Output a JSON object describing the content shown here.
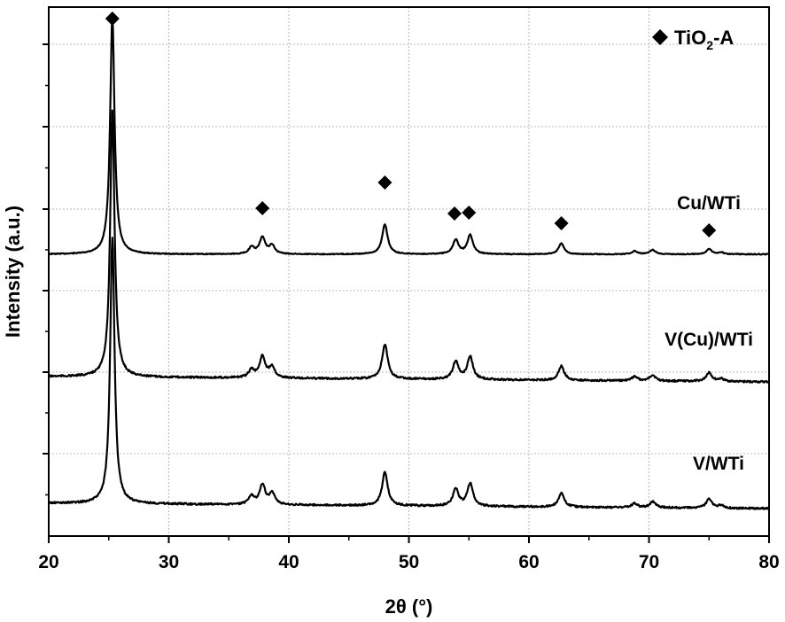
{
  "chart_data": {
    "type": "line",
    "xlabel": "2θ (°)",
    "ylabel": "Intensity (a.u.)",
    "xlim": [
      20,
      80
    ],
    "xticks": [
      "20",
      "30",
      "40",
      "50",
      "60",
      "70",
      "80"
    ],
    "grid": true,
    "y_tick_labels_shown": false,
    "legend": {
      "marker": "diamond",
      "text_main": "TiO",
      "text_sub": "2",
      "text_tail": "-A",
      "placement": "top-right"
    },
    "series": [
      {
        "name": "Cu/WTi",
        "baseline": [
          0.0,
          0.0
        ],
        "peaks": [
          [
            25.3,
            100
          ],
          [
            36.9,
            2.8
          ],
          [
            37.8,
            7.0
          ],
          [
            38.6,
            3.5
          ],
          [
            48.0,
            12.5
          ],
          [
            53.9,
            6.0
          ],
          [
            55.1,
            8.0
          ],
          [
            62.7,
            4.5
          ],
          [
            68.8,
            1.3
          ],
          [
            70.3,
            1.8
          ],
          [
            75.0,
            2.2
          ],
          [
            76.0,
            0.8
          ]
        ]
      },
      {
        "name": "V(Cu)/WTi",
        "baseline": [
          2.0,
          0.0
        ],
        "peaks": [
          [
            25.3,
            100
          ],
          [
            36.9,
            3.0
          ],
          [
            37.8,
            8.0
          ],
          [
            38.6,
            4.2
          ],
          [
            48.0,
            13.0
          ],
          [
            53.9,
            6.8
          ],
          [
            55.1,
            8.7
          ],
          [
            62.7,
            5.4
          ],
          [
            68.8,
            1.6
          ],
          [
            70.3,
            2.3
          ],
          [
            75.0,
            3.4
          ],
          [
            76.0,
            1.0
          ]
        ]
      },
      {
        "name": "V/WTi",
        "baseline": [
          2.0,
          0.0
        ],
        "peaks": [
          [
            25.3,
            100
          ],
          [
            36.9,
            3.0
          ],
          [
            37.8,
            7.5
          ],
          [
            38.6,
            4.2
          ],
          [
            48.0,
            12.5
          ],
          [
            53.9,
            6.5
          ],
          [
            55.1,
            8.5
          ],
          [
            62.7,
            5.3
          ],
          [
            68.8,
            1.6
          ],
          [
            70.3,
            2.3
          ],
          [
            75.0,
            3.4
          ],
          [
            76.0,
            1.0
          ]
        ]
      }
    ],
    "anatase_marker_positions": [
      25.3,
      37.8,
      48.0,
      53.8,
      55.0,
      62.7,
      75.0
    ]
  }
}
